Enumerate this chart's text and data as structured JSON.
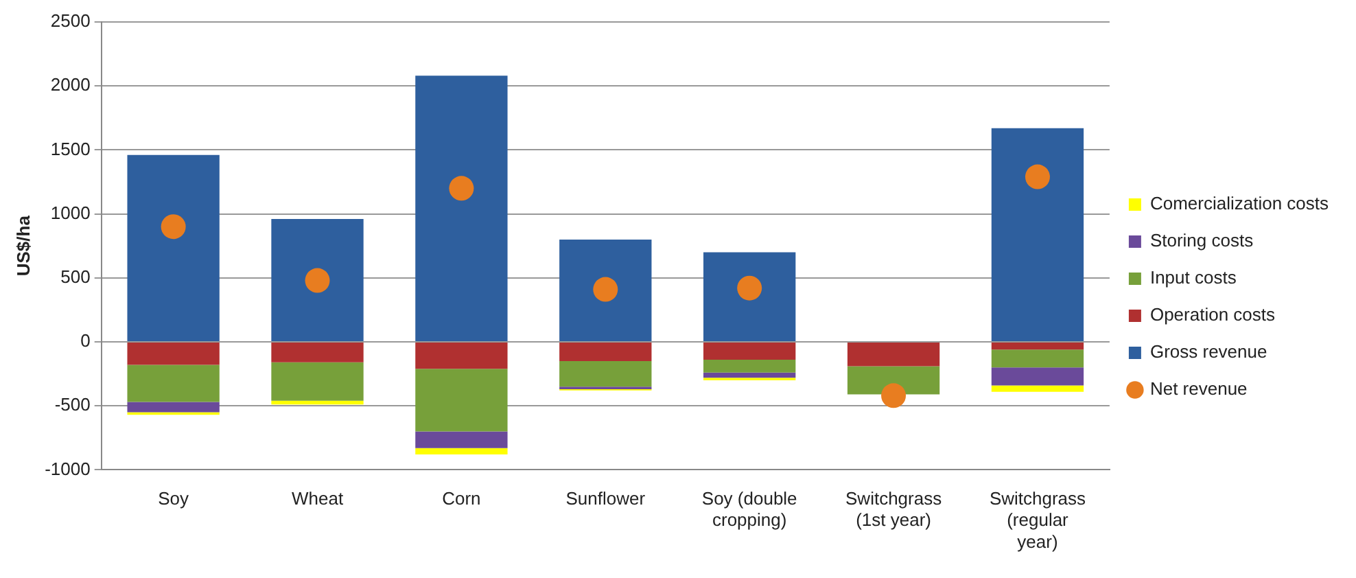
{
  "chart_data": {
    "type": "bar",
    "stacked": true,
    "ylabel": "US$/ha",
    "categories": [
      "Soy",
      "Wheat",
      "Corn",
      "Sunflower",
      "Soy (double cropping)",
      "Switchgrass (1st year)",
      "Switchgrass (regular year)"
    ],
    "series": [
      {
        "name": "Gross revenue",
        "color": "#2e5f9e",
        "values": [
          1460,
          960,
          2080,
          800,
          700,
          0,
          1670
        ]
      },
      {
        "name": "Operation costs",
        "color": "#b03030",
        "values": [
          -180,
          -160,
          -210,
          -150,
          -140,
          -190,
          -60
        ]
      },
      {
        "name": "Input costs",
        "color": "#77a03a",
        "values": [
          -290,
          -300,
          -490,
          -200,
          -100,
          -220,
          -140
        ]
      },
      {
        "name": "Storing costs",
        "color": "#6a4a9a",
        "values": [
          -80,
          0,
          -130,
          -20,
          -40,
          0,
          -140
        ]
      },
      {
        "name": "Comercialization costs",
        "color": "#ffff00",
        "values": [
          -20,
          -30,
          -50,
          -10,
          -20,
          0,
          -50
        ]
      },
      {
        "name": "Net revenue",
        "type": "scatter",
        "color": "#e87d20",
        "values": [
          900,
          480,
          1200,
          410,
          420,
          -420,
          1290
        ]
      }
    ],
    "ylim": [
      -1000,
      2500
    ],
    "yticks": [
      -1000,
      -500,
      0,
      500,
      1000,
      1500,
      2000,
      2500
    ],
    "grid": "y",
    "legend": "right",
    "marker": "circle"
  }
}
